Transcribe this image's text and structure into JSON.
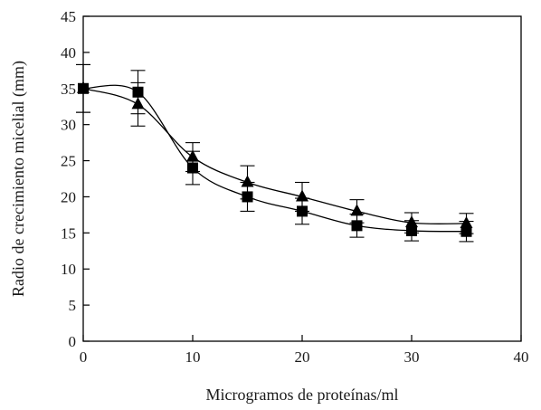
{
  "chart_data": {
    "type": "line",
    "xlabel": "Microgramos de proteínas/ml",
    "ylabel": "Radio de crecimiento micelial (mm)",
    "xlim": [
      0,
      40
    ],
    "ylim": [
      0,
      45
    ],
    "x_ticks": [
      0,
      10,
      20,
      30,
      40
    ],
    "y_ticks": [
      0,
      5,
      10,
      15,
      20,
      25,
      30,
      35,
      40,
      45
    ],
    "grid": false,
    "legend": "none",
    "series": [
      {
        "marker": "triangle",
        "color": "#000000",
        "x": [
          0,
          5,
          10,
          15,
          20,
          25,
          30,
          35
        ],
        "y": [
          35,
          32.8,
          25.5,
          22,
          20,
          18,
          16.4,
          16.3
        ],
        "error": [
          3.3,
          3.0,
          2.0,
          2.3,
          2.0,
          1.6,
          1.4,
          1.4
        ]
      },
      {
        "marker": "square",
        "color": "#000000",
        "x": [
          0,
          5,
          10,
          15,
          20,
          25,
          30,
          35
        ],
        "y": [
          35,
          34.5,
          24,
          20,
          18,
          16,
          15.3,
          15.2
        ],
        "error": [
          3.3,
          3.0,
          2.3,
          2.0,
          1.8,
          1.6,
          1.4,
          1.4
        ]
      }
    ]
  }
}
